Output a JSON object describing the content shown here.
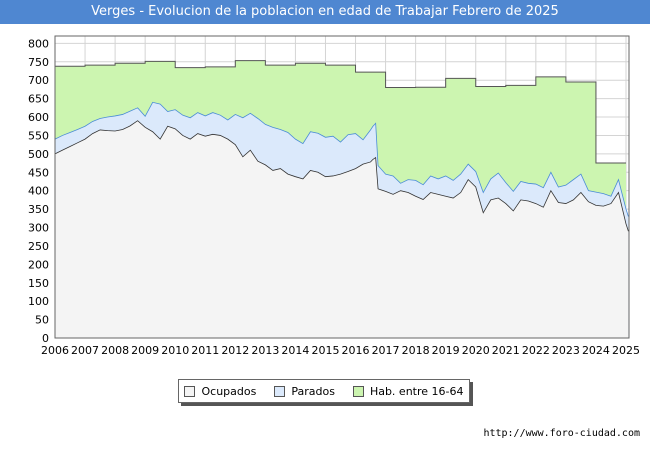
{
  "title": "Verges - Evolucion de la poblacion en edad de Trabajar Febrero de 2025",
  "source": "http://www.foro-ciudad.com",
  "colors": {
    "title_bg": "#4f87d1",
    "hab_fill": "#ccf5b0",
    "hab_line": "#555555",
    "parados_fill": "#dbe9fb",
    "parados_line": "#4a8cd6",
    "ocupados_fill": "#f4f4f4",
    "ocupados_line": "#333333",
    "grid": "#d4d4d4"
  },
  "chart_data": {
    "type": "area",
    "title": "Verges - Evolucion de la poblacion en edad de Trabajar Febrero de 2025",
    "xlabel": "",
    "ylabel": "",
    "xlim": [
      2006,
      2025.1
    ],
    "ylim": [
      0,
      820
    ],
    "yticks": [
      0,
      50,
      100,
      150,
      200,
      250,
      300,
      350,
      400,
      450,
      500,
      550,
      600,
      650,
      700,
      750,
      800
    ],
    "xticks": [
      "2006",
      "2007",
      "2008",
      "2009",
      "2010",
      "2011",
      "2012",
      "2013",
      "2014",
      "2015",
      "2016",
      "2017",
      "2018",
      "2019",
      "2020",
      "2021",
      "2022",
      "2023",
      "2024",
      "2025"
    ],
    "grid": true,
    "legend": [
      "Ocupados",
      "Parados",
      "Hab. entre 16-64"
    ],
    "legend_position": "bottom",
    "series": [
      {
        "name": "Hab. entre 16-64",
        "step": true,
        "x": [
          2006,
          2007,
          2008,
          2009,
          2010,
          2011,
          2012,
          2013,
          2014,
          2015,
          2016,
          2017,
          2018,
          2019,
          2020,
          2021,
          2022,
          2023,
          2024
        ],
        "values": [
          738,
          741,
          746,
          751,
          734,
          736,
          753,
          741,
          746,
          741,
          722,
          680,
          681,
          705,
          683,
          686,
          709,
          695,
          475
        ]
      },
      {
        "name": "Parados",
        "x": [
          2006.0,
          2006.25,
          2006.5,
          2006.75,
          2007.0,
          2007.25,
          2007.5,
          2007.75,
          2008.0,
          2008.25,
          2008.5,
          2008.75,
          2009.0,
          2009.25,
          2009.5,
          2009.75,
          2010.0,
          2010.25,
          2010.5,
          2010.75,
          2011.0,
          2011.25,
          2011.5,
          2011.75,
          2012.0,
          2012.25,
          2012.5,
          2012.75,
          2013.0,
          2013.25,
          2013.5,
          2013.75,
          2014.0,
          2014.25,
          2014.5,
          2014.75,
          2015.0,
          2015.25,
          2015.5,
          2015.75,
          2016.0,
          2016.25,
          2016.5,
          2016.58,
          2016.67,
          2016.75,
          2017.0,
          2017.25,
          2017.5,
          2017.75,
          2018.0,
          2018.25,
          2018.5,
          2018.75,
          2019.0,
          2019.25,
          2019.5,
          2019.75,
          2020.0,
          2020.25,
          2020.5,
          2020.75,
          2021.0,
          2021.25,
          2021.5,
          2021.75,
          2022.0,
          2022.25,
          2022.5,
          2022.75,
          2023.0,
          2023.25,
          2023.5,
          2023.75,
          2024.0,
          2024.25,
          2024.5,
          2024.75,
          2025.0,
          2025.08
        ],
        "values": [
          540,
          550,
          558,
          566,
          575,
          588,
          596,
          600,
          603,
          607,
          616,
          625,
          602,
          640,
          635,
          615,
          620,
          605,
          598,
          612,
          603,
          612,
          605,
          592,
          607,
          598,
          610,
          596,
          580,
          572,
          566,
          558,
          540,
          528,
          560,
          556,
          545,
          548,
          532,
          552,
          555,
          538,
          565,
          575,
          583,
          468,
          445,
          440,
          420,
          430,
          428,
          416,
          440,
          432,
          440,
          428,
          445,
          472,
          452,
          395,
          432,
          448,
          422,
          398,
          425,
          420,
          418,
          408,
          450,
          410,
          415,
          430,
          445,
          400,
          396,
          392,
          385,
          430,
          350,
          330
        ]
      },
      {
        "name": "Ocupados",
        "x": [
          2006.0,
          2006.25,
          2006.5,
          2006.75,
          2007.0,
          2007.25,
          2007.5,
          2007.75,
          2008.0,
          2008.25,
          2008.5,
          2008.75,
          2009.0,
          2009.25,
          2009.5,
          2009.75,
          2010.0,
          2010.25,
          2010.5,
          2010.75,
          2011.0,
          2011.25,
          2011.5,
          2011.75,
          2012.0,
          2012.25,
          2012.5,
          2012.75,
          2013.0,
          2013.25,
          2013.5,
          2013.75,
          2014.0,
          2014.25,
          2014.5,
          2014.75,
          2015.0,
          2015.25,
          2015.5,
          2015.75,
          2016.0,
          2016.25,
          2016.5,
          2016.58,
          2016.67,
          2016.75,
          2017.0,
          2017.25,
          2017.5,
          2017.75,
          2018.0,
          2018.25,
          2018.5,
          2018.75,
          2019.0,
          2019.25,
          2019.5,
          2019.75,
          2020.0,
          2020.25,
          2020.5,
          2020.75,
          2021.0,
          2021.25,
          2021.5,
          2021.75,
          2022.0,
          2022.25,
          2022.5,
          2022.75,
          2023.0,
          2023.25,
          2023.5,
          2023.75,
          2024.0,
          2024.25,
          2024.5,
          2024.75,
          2025.0,
          2025.08
        ],
        "values": [
          500,
          510,
          520,
          530,
          540,
          555,
          565,
          563,
          562,
          566,
          576,
          590,
          572,
          560,
          540,
          575,
          568,
          550,
          540,
          555,
          548,
          553,
          550,
          540,
          525,
          492,
          510,
          480,
          470,
          455,
          460,
          445,
          438,
          432,
          455,
          450,
          438,
          440,
          445,
          452,
          460,
          472,
          478,
          485,
          490,
          405,
          398,
          390,
          400,
          395,
          385,
          376,
          395,
          390,
          385,
          380,
          395,
          430,
          410,
          340,
          375,
          380,
          365,
          345,
          375,
          372,
          365,
          355,
          400,
          368,
          365,
          375,
          395,
          370,
          360,
          358,
          365,
          395,
          310,
          290
        ]
      }
    ]
  }
}
